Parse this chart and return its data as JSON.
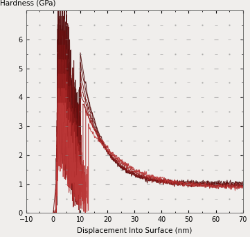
{
  "xlabel": "Displacement Into Surface (nm)",
  "ylabel": "Hardness (GPa)",
  "xlim": [
    -10,
    70
  ],
  "ylim": [
    0,
    7
  ],
  "yticks": [
    0,
    1,
    2,
    3,
    4,
    5,
    6
  ],
  "xticks": [
    -10,
    0,
    10,
    20,
    30,
    40,
    50,
    60,
    70
  ],
  "figsize": [
    3.61,
    3.42
  ],
  "dpi": 100,
  "background_color": "#f0eeec",
  "colors": [
    "#4a0808",
    "#5a0c0c",
    "#6a1010",
    "#7a1414",
    "#8a1a1a",
    "#9a2020",
    "#aa2828",
    "#bc3838"
  ],
  "line_width": 0.7,
  "ylabel_fontsize": 7.5,
  "xlabel_fontsize": 7.5,
  "tick_fontsize": 7
}
